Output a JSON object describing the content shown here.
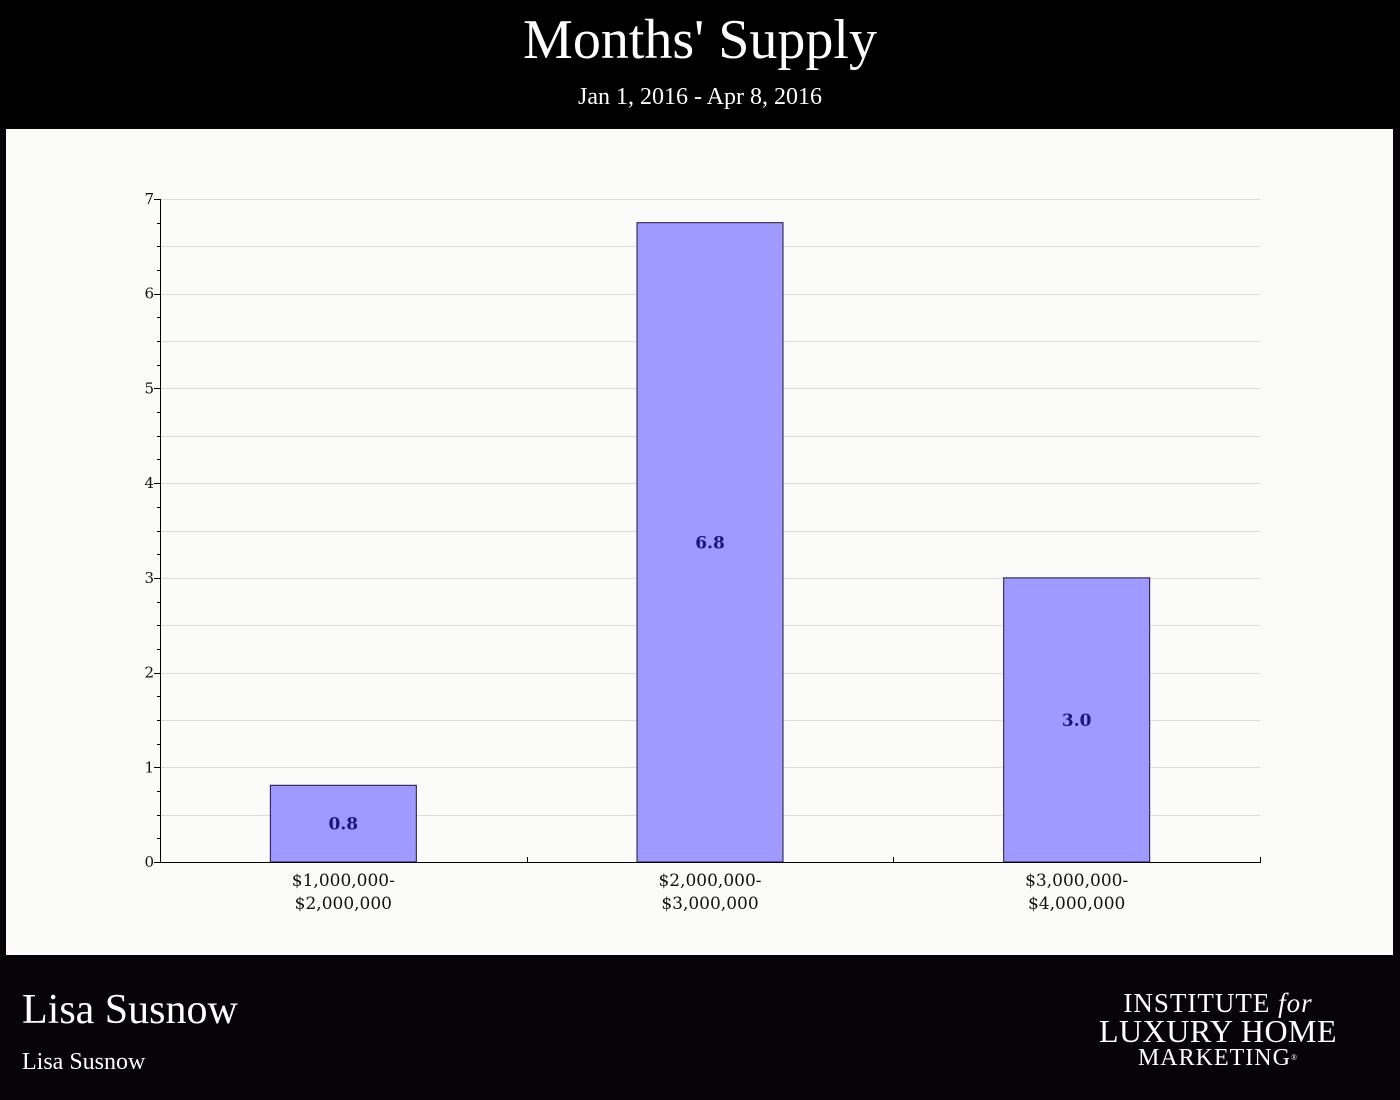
{
  "header": {
    "title": "Months' Supply",
    "subtitle": "Jan 1, 2016 - Apr 8, 2016"
  },
  "chart_data": {
    "type": "bar",
    "title": "Months' Supply",
    "subtitle": "Jan 1, 2016 - Apr 8, 2016",
    "xlabel": "",
    "ylabel": "",
    "categories": [
      [
        "$1,000,000-",
        "$2,000,000"
      ],
      [
        "$2,000,000-",
        "$3,000,000"
      ],
      [
        "$3,000,000-",
        "$4,000,000"
      ]
    ],
    "values": [
      0.81,
      6.75,
      3.0
    ],
    "data_labels": [
      "0.8",
      "6.8",
      "3.0"
    ],
    "ylim": [
      0,
      7
    ],
    "yticks": [
      0,
      1,
      2,
      3,
      4,
      5,
      6,
      7
    ],
    "grid": true,
    "legend": "none",
    "colors": {
      "bar": "#9e9aff",
      "bar_stroke": "#1a1440",
      "data_label": "#1a1680",
      "grid": "#dcdcdc",
      "axis": "#000000"
    }
  },
  "footer": {
    "agent_name": "Lisa Susnow",
    "agent_subtitle": "Lisa Susnow",
    "logo": {
      "line1": "INSTITUTE",
      "line1_italic": "for",
      "line2": "LUXURY HOME",
      "line3": "MARKETING",
      "mark": "®"
    }
  }
}
